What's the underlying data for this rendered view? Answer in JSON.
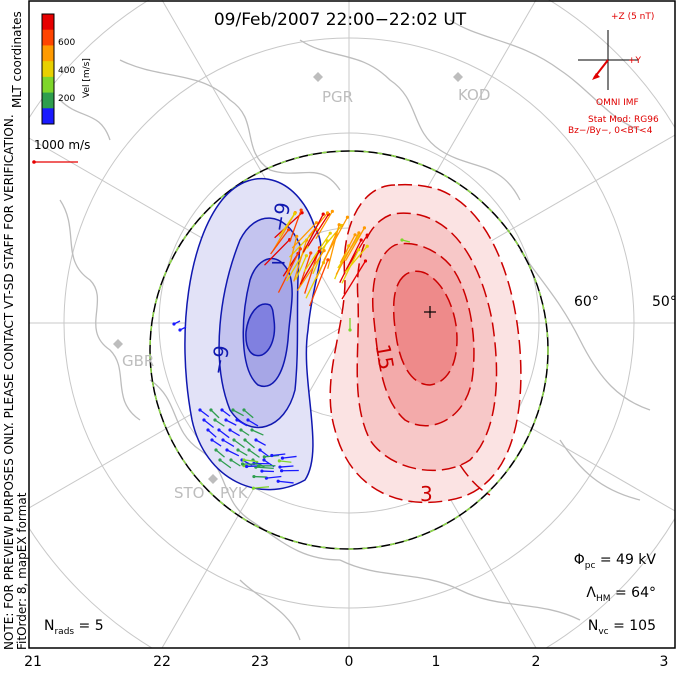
{
  "title": "09/Feb/2007 22:00−22:02 UT",
  "note_line1": "NOTE: FOR PREVIEW PURPOSES ONLY. PLEASE CONTACT VT-SD STAFF FOR VERIFICATION.",
  "note_line2": "FitOrder: 8, mapEX format",
  "mlt_label": "MLT coordinates",
  "reference_vector": "1000 m/s",
  "colorbar": {
    "label": "Vel [m/s]",
    "ticks": [
      "200",
      "400",
      "600"
    ],
    "colors": [
      "#1a1aff",
      "#2e9e4e",
      "#7ed62a",
      "#e8d000",
      "#ff9a00",
      "#ff4400",
      "#e60000"
    ]
  },
  "imf": {
    "z_label": "+Z (5 nT)",
    "y_label": "+Y",
    "line1": "OMNI IMF",
    "line2": "Stat Mod: RG96",
    "line3": "Bz−/By−, 0<BT<4"
  },
  "stats": {
    "phi_sym": "Φ",
    "phi_sub": "pc",
    "phi_val": " = 49 kV",
    "lam_sym": "Λ",
    "lam_sub": "HM",
    "lam_val": " = 64°",
    "nvc_sym": "N",
    "nvc_sub": "vc",
    "nvc_val": " = 105",
    "nrads_sym": "N",
    "nrads_sub": "rads",
    "nrads_val": " = 5"
  },
  "stations": [
    "PGR",
    "KOD",
    "GBR",
    "STO",
    "PYK"
  ],
  "x_ticks": [
    "21",
    "22",
    "23",
    "0",
    "1",
    "2",
    "3"
  ],
  "lat_labels": [
    "60°",
    "50°"
  ],
  "contour_labels": [
    "−9",
    "−",
    "−9",
    "15",
    "3",
    "+"
  ],
  "colors": {
    "negative": "#1018b0",
    "positive": "#cc0000",
    "grid": "#c8c8c8",
    "coast": "#bdbdbd",
    "imf": "#e00000"
  },
  "chart_data": {
    "type": "convection-map",
    "title": "09/Feb/2007 22:00−22:02 UT",
    "x_axis": "MLT",
    "x_ticks": [
      21,
      22,
      23,
      0,
      1,
      2,
      3
    ],
    "latitude_circles_deg": [
      50,
      60,
      70,
      80
    ],
    "heppner_maynard_boundary_deg": 64,
    "cross_polar_cap_potential_kV": 49,
    "n_vectors": 105,
    "n_radars": 5,
    "velocity_scale_ms": [
      0,
      700
    ],
    "contours": [
      {
        "sign": "negative",
        "labels": [
          "−9",
          "−9"
        ]
      },
      {
        "sign": "positive",
        "labels": [
          "15",
          "3"
        ]
      }
    ]
  }
}
